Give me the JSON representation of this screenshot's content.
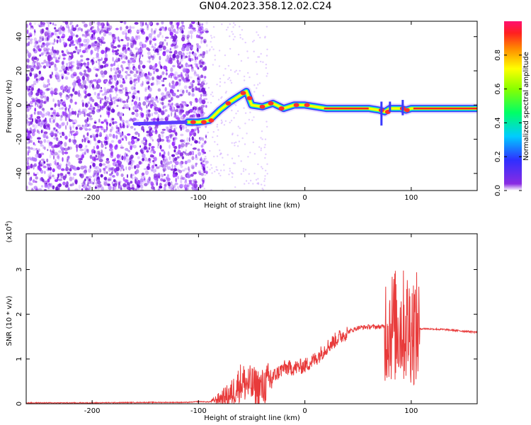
{
  "title": "GN04.2023.358.12.02.C24",
  "chart_data": [
    {
      "type": "heatmap",
      "xlabel": "Height of straight line (km)",
      "ylabel": "Frequency (Hz)",
      "xlim": [
        -262,
        162
      ],
      "ylim": [
        -50,
        49
      ],
      "xticks": [
        -200,
        -100,
        0,
        100
      ],
      "yticks": [
        -40,
        -20,
        0,
        20,
        40
      ],
      "colorbar": {
        "label": "Normalized spectral amplitude",
        "range": [
          0.0,
          1.0
        ],
        "ticks": [
          "0.0",
          "0.2",
          "0.4",
          "0.6",
          "0.8"
        ]
      },
      "ridge": {
        "x": [
          -110,
          -100,
          -90,
          -80,
          -70,
          -60,
          -55,
          -50,
          -40,
          -30,
          -20,
          -10,
          0,
          10,
          20,
          40,
          60,
          70,
          75,
          80,
          90,
          95,
          100,
          120,
          140,
          162
        ],
        "y": [
          -10,
          -10,
          -9,
          -3,
          2,
          6,
          8,
          0,
          -1,
          1,
          -2,
          0,
          0,
          -1,
          -2,
          -2,
          -2,
          -3,
          -4,
          -2,
          -2,
          -3,
          -2,
          -2,
          -2,
          -2
        ]
      },
      "noise_region_x": [
        -262,
        -92
      ]
    },
    {
      "type": "line",
      "xlabel": "Height of straight line (km)",
      "ylabel": "SNR (10 * v/v)",
      "y_multiplier": "(x10^4)",
      "xlim": [
        -262,
        162
      ],
      "ylim": [
        0,
        3.8
      ],
      "xticks": [
        -200,
        -100,
        0,
        100
      ],
      "yticks": [
        0,
        1,
        2,
        3
      ],
      "series": [
        {
          "color": "#e83a3a",
          "x": [
            -262,
            -200,
            -150,
            -110,
            -100,
            -90,
            -70,
            -60,
            -50,
            -40,
            -30,
            -20,
            -10,
            0,
            10,
            20,
            30,
            40,
            50,
            60,
            70,
            80,
            90,
            100,
            105,
            110,
            130,
            162
          ],
          "y": [
            0.02,
            0.02,
            0.03,
            0.03,
            0.05,
            0.04,
            0.2,
            0.5,
            0.4,
            0.35,
            0.6,
            0.8,
            0.8,
            0.85,
            1.0,
            1.25,
            1.45,
            1.6,
            1.7,
            1.72,
            1.72,
            1.74,
            1.74,
            1.72,
            1.65,
            1.68,
            1.66,
            1.6
          ]
        }
      ]
    }
  ]
}
